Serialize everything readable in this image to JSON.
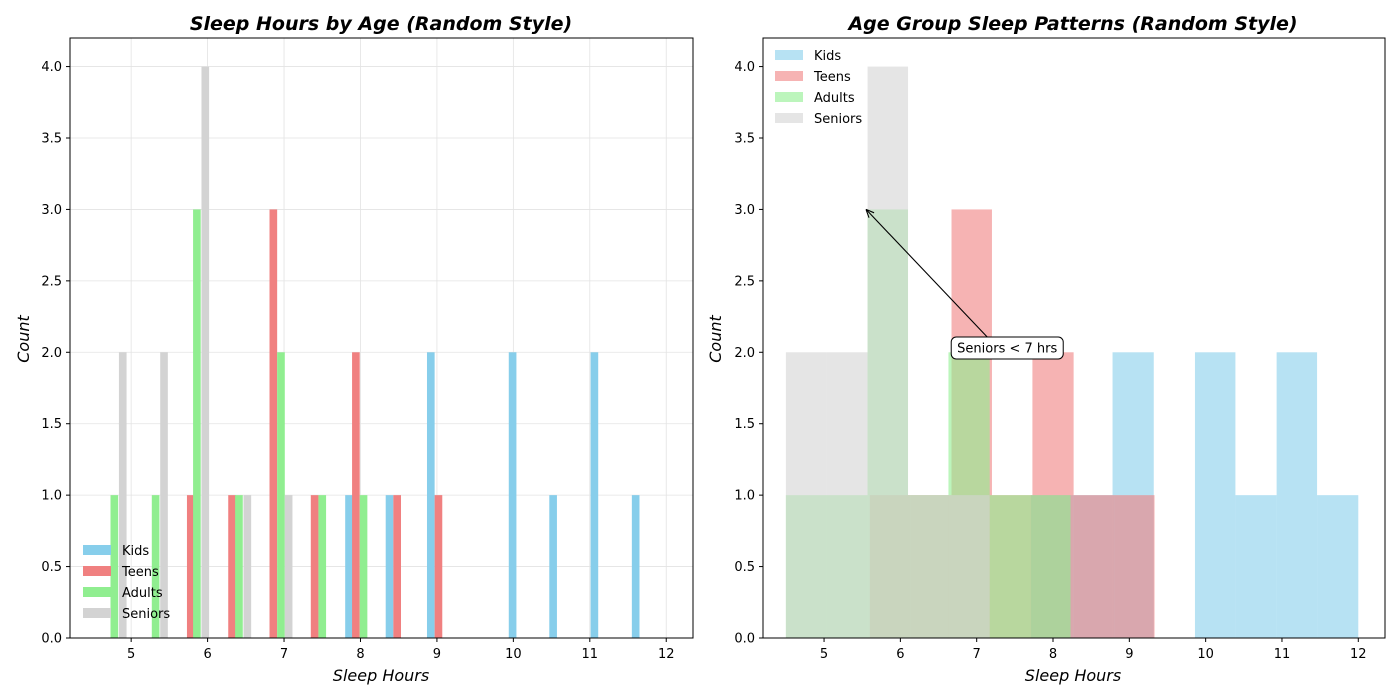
{
  "colors": {
    "Kids": "#87ceeb",
    "Teens": "#f08080",
    "Adults": "#90ee90",
    "Seniors": "#d3d3d3"
  },
  "chart_data": [
    {
      "type": "bar",
      "title": "Sleep Hours by Age (Random Style)",
      "xlabel": "Sleep Hours",
      "ylabel": "Count",
      "xlim": [
        4.2,
        12.35
      ],
      "ylim": [
        0,
        4.2
      ],
      "xticks": [
        5,
        6,
        7,
        8,
        9,
        10,
        11,
        12
      ],
      "yticks": [
        0.0,
        0.5,
        1.0,
        1.5,
        2.0,
        2.5,
        3.0,
        3.5,
        4.0
      ],
      "grid": true,
      "legend_position": "lower-left",
      "bar_width": 0.1,
      "series": [
        {
          "name": "Kids",
          "points": [
            [
              7.85,
              1
            ],
            [
              8.38,
              1
            ],
            [
              8.92,
              2
            ],
            [
              9.99,
              2
            ],
            [
              10.52,
              1
            ],
            [
              11.06,
              2
            ],
            [
              11.6,
              1
            ]
          ]
        },
        {
          "name": "Teens",
          "points": [
            [
              5.78,
              1
            ],
            [
              6.32,
              1
            ],
            [
              6.86,
              3
            ],
            [
              7.4,
              1
            ],
            [
              7.94,
              2
            ],
            [
              8.48,
              1
            ],
            [
              9.02,
              1
            ]
          ]
        },
        {
          "name": "Adults",
          "points": [
            [
              4.78,
              1
            ],
            [
              5.32,
              1
            ],
            [
              5.86,
              3
            ],
            [
              6.41,
              1
            ],
            [
              6.96,
              2
            ],
            [
              7.5,
              1
            ],
            [
              8.04,
              1
            ]
          ]
        },
        {
          "name": "Seniors",
          "points": [
            [
              4.89,
              2
            ],
            [
              5.43,
              2
            ],
            [
              5.97,
              4
            ],
            [
              6.52,
              1
            ],
            [
              7.06,
              1
            ]
          ]
        }
      ]
    },
    {
      "type": "histogram",
      "title": "Age Group Sleep Patterns (Random Style)",
      "xlabel": "Sleep Hours",
      "ylabel": "Count",
      "xlim": [
        4.2,
        12.35
      ],
      "ylim": [
        0,
        4.2
      ],
      "xticks": [
        5,
        6,
        7,
        8,
        9,
        10,
        11,
        12
      ],
      "yticks": [
        0.0,
        0.5,
        1.0,
        1.5,
        2.0,
        2.5,
        3.0,
        3.5,
        4.0
      ],
      "grid": false,
      "legend_position": "upper-left",
      "series": [
        {
          "name": "Kids",
          "edges": [
            7.71,
            8.25,
            8.78,
            9.32,
            9.86,
            10.39,
            10.93,
            11.46,
            12.0
          ],
          "counts": [
            1,
            1,
            2,
            0,
            2,
            1,
            2,
            1
          ]
        },
        {
          "name": "Teens",
          "edges": [
            5.6,
            6.13,
            6.67,
            7.2,
            7.73,
            8.27,
            8.8,
            9.33
          ],
          "counts": [
            1,
            1,
            3,
            1,
            2,
            1,
            1
          ]
        },
        {
          "name": "Adults",
          "edges": [
            4.5,
            5.03,
            5.57,
            6.1,
            6.63,
            7.17,
            7.7,
            8.23
          ],
          "counts": [
            1,
            1,
            3,
            1,
            2,
            1,
            1
          ]
        },
        {
          "name": "Seniors",
          "edges": [
            4.5,
            5.03,
            5.57,
            6.1,
            6.63,
            7.17
          ],
          "counts": [
            2,
            2,
            4,
            1,
            1
          ]
        }
      ],
      "annotation": {
        "text": "Seniors < 7 hrs",
        "xy": [
          5.55,
          3.0
        ],
        "xytext": [
          7.4,
          2.03
        ]
      }
    }
  ]
}
